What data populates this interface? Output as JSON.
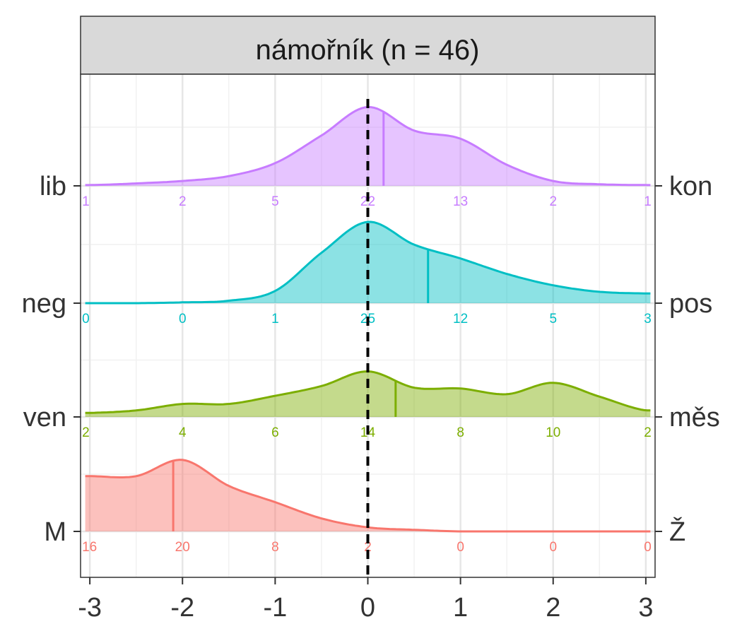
{
  "chart_data": {
    "type": "ridgeline-density",
    "title": "námořník (n = 46)",
    "xlabel": "",
    "ylabel": "",
    "xlim": [
      -3.1,
      3.1
    ],
    "x_ticks": [
      -3,
      -2,
      -1,
      0,
      1,
      2,
      3
    ],
    "grid": true,
    "reference_line": {
      "x": 0,
      "style": "dashed",
      "color": "#000000"
    },
    "density_x": [
      -3,
      -2.5,
      -2,
      -1.5,
      -1,
      -0.5,
      0,
      0.5,
      1,
      1.5,
      2,
      2.5,
      3
    ],
    "series": [
      {
        "left_label": "lib",
        "right_label": "kon",
        "color": "#C77CFF",
        "mean": 0.17,
        "count_positions": [
          -3,
          -2,
          -1,
          0,
          1,
          2,
          3
        ],
        "counts": [
          "1",
          "2",
          "5",
          "22",
          "13",
          "2",
          "1"
        ],
        "density": [
          0.01,
          0.03,
          0.06,
          0.12,
          0.28,
          0.62,
          0.97,
          0.68,
          0.58,
          0.26,
          0.06,
          0.02,
          0.01
        ]
      },
      {
        "left_label": "neg",
        "right_label": "pos",
        "color": "#00BFC4",
        "mean": 0.65,
        "count_positions": [
          -3,
          -2,
          -1,
          0,
          1,
          2,
          3
        ],
        "counts": [
          "0",
          "0",
          "1",
          "25",
          "12",
          "5",
          "3"
        ],
        "density": [
          0.0,
          0.0,
          0.01,
          0.03,
          0.15,
          0.62,
          1.0,
          0.72,
          0.55,
          0.36,
          0.22,
          0.14,
          0.12
        ]
      },
      {
        "left_label": "ven",
        "right_label": "měs",
        "color": "#7CAE00",
        "mean": 0.3,
        "count_positions": [
          -3,
          -2,
          -1,
          0,
          1,
          2,
          3
        ],
        "counts": [
          "2",
          "4",
          "6",
          "14",
          "8",
          "10",
          "2"
        ],
        "density": [
          0.05,
          0.08,
          0.16,
          0.16,
          0.26,
          0.38,
          0.56,
          0.36,
          0.35,
          0.28,
          0.42,
          0.25,
          0.08
        ]
      },
      {
        "left_label": "M",
        "right_label": "Ž",
        "color": "#F8766D",
        "mean": -2.1,
        "count_positions": [
          -3,
          -2,
          -1,
          0,
          1,
          2,
          3
        ],
        "counts": [
          "16",
          "20",
          "8",
          "2",
          "0",
          "0",
          "0"
        ],
        "density": [
          0.68,
          0.68,
          0.88,
          0.56,
          0.36,
          0.16,
          0.05,
          0.02,
          0.0,
          0.0,
          0.0,
          0.0,
          0.0
        ]
      }
    ]
  }
}
